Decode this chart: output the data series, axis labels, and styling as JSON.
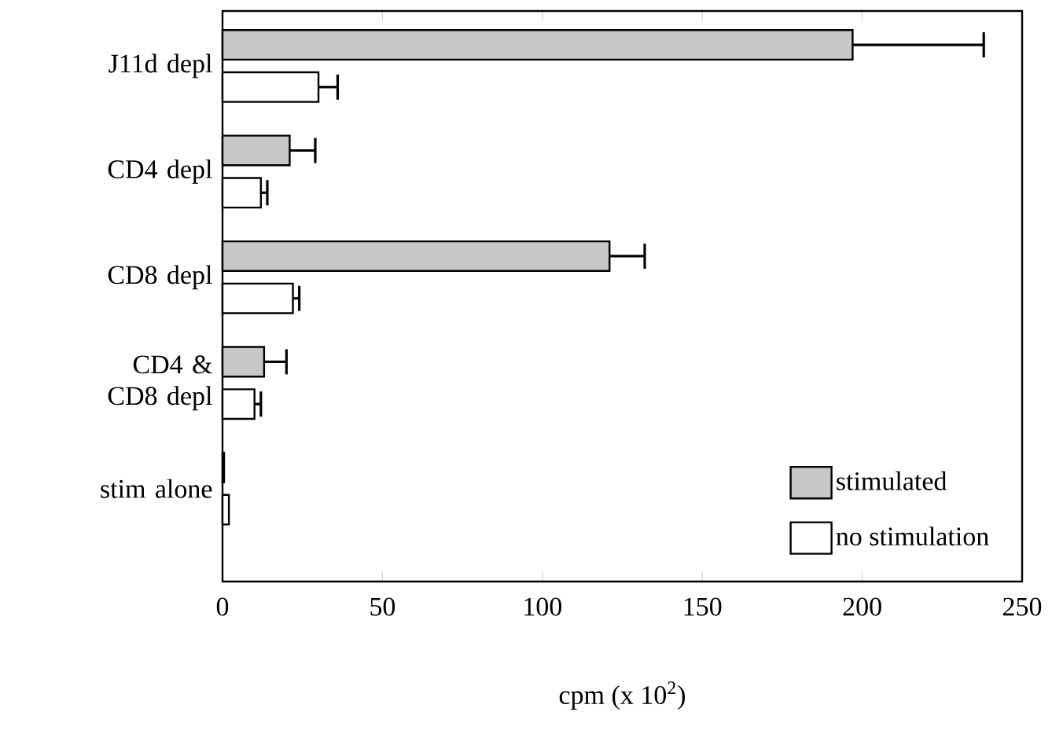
{
  "chart_data": {
    "type": "bar",
    "orientation": "horizontal",
    "xlabel": "cpm (x 10$^{2}$)",
    "categories": [
      "J11d depl",
      "CD4 depl",
      "CD8 depl",
      "CD4 & CD8 depl",
      "stim alone"
    ],
    "series": [
      {
        "name": "stimulated",
        "color": "#c8c8c8",
        "values": [
          197,
          21,
          121,
          13,
          0.5
        ],
        "errors": [
          [
            197,
            238
          ],
          [
            21,
            29
          ],
          [
            121,
            132
          ],
          [
            13,
            20
          ],
          null
        ]
      },
      {
        "name": "no stimulation",
        "color": "#ffffff",
        "values": [
          30,
          12,
          22,
          10,
          2
        ],
        "errors": [
          [
            30,
            36
          ],
          [
            12,
            14
          ],
          [
            22,
            24
          ],
          [
            10,
            12
          ],
          null
        ]
      }
    ],
    "xlim": [
      0,
      250
    ],
    "xticks": [
      0,
      50,
      100,
      150,
      200,
      250
    ],
    "legend": "bottom right"
  }
}
